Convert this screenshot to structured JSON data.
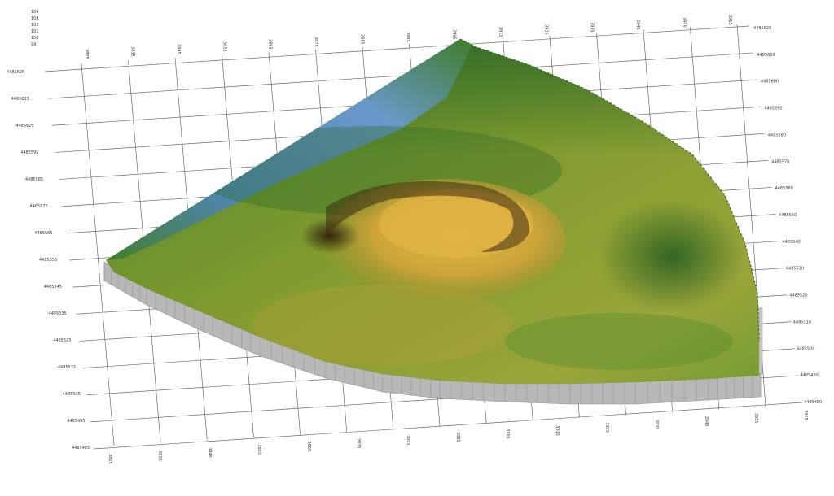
{
  "view": {
    "kind": "3d-terrain-block",
    "surface_colors": {
      "low": "#4f86c8",
      "mid_green": "#3f7d2c",
      "dark_green": "#285e22",
      "olive": "#8a9a2c",
      "yellow": "#d6ad3a",
      "shadow": "#3d2c10"
    },
    "block_side_color": "#b8b8b8",
    "grid_color": "#6b6b6b"
  },
  "axes": {
    "z_ticks": [
      "104",
      "103",
      "102",
      "101",
      "100",
      "99"
    ],
    "y_left_ticks": [
      "4485625",
      "4485615",
      "4485605",
      "4485595",
      "4485585",
      "4485575",
      "4485565",
      "4485555",
      "4485545",
      "4485535",
      "4485525",
      "4485515",
      "4485505",
      "4485495",
      "4485485"
    ],
    "y_right_ticks": [
      "4485620",
      "4485610",
      "4485600",
      "4485590",
      "4485580",
      "4485570",
      "4485560",
      "4485550",
      "4485540",
      "4485530",
      "4485520",
      "4485510",
      "4485500",
      "4485490",
      "4485480"
    ],
    "x_top_ticks": [
      "3825",
      "3835",
      "3845",
      "3855",
      "3865",
      "3875",
      "3885",
      "3895",
      "3905",
      "3915",
      "3925",
      "3935",
      "3945",
      "3955",
      "3965"
    ],
    "x_bottom_ticks": [
      "3825",
      "3835",
      "3845",
      "3855",
      "3865",
      "3875",
      "3885",
      "3895",
      "3905",
      "3915",
      "3925",
      "3935",
      "3945",
      "3955",
      "3965"
    ]
  }
}
